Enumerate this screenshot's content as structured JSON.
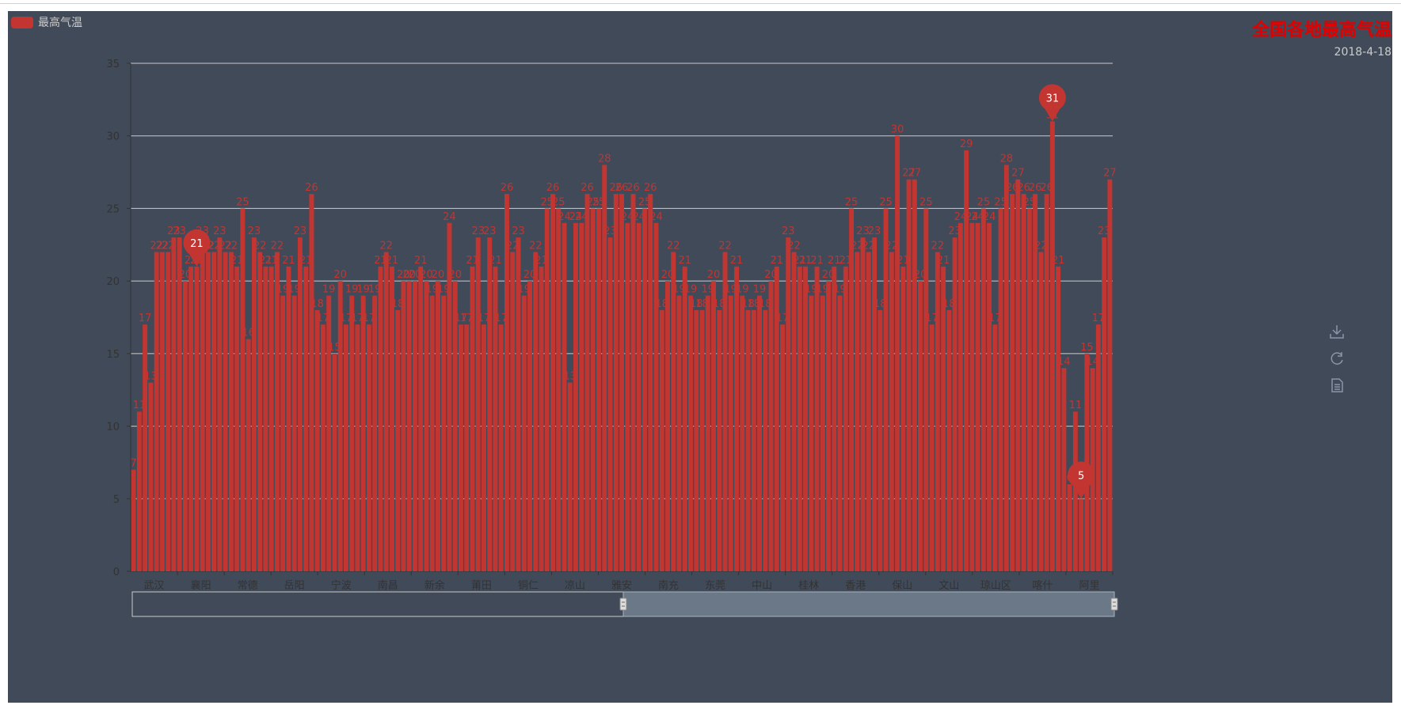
{
  "title": "全国各地最高气温",
  "subtitle": "2018-4-18",
  "legend": {
    "label": "最高气温",
    "color": "#c23531"
  },
  "colors": {
    "panel_bg": "#404a59",
    "bar": "#c23531",
    "axis_text": "#333333",
    "grid": "#cccccc",
    "slider": "#6b7888"
  },
  "toolbox": [
    "download-icon",
    "refresh-icon",
    "data-view-icon"
  ],
  "chart_data": {
    "type": "bar",
    "series_name": "最高气温",
    "x_tick_labels": [
      "武汉",
      "襄阳",
      "常德",
      "岳阳",
      "宁波",
      "南昌",
      "新余",
      "莆田",
      "铜仁",
      "凉山",
      "雅安",
      "南充",
      "东莞",
      "中山",
      "桂林",
      "香港",
      "保山",
      "文山",
      "琼山区",
      "喀什",
      "阿里"
    ],
    "values": [
      7,
      11,
      17,
      13,
      22,
      22,
      22,
      23,
      23,
      20,
      21,
      21,
      23,
      22,
      22,
      23,
      22,
      22,
      21,
      25,
      16,
      23,
      22,
      21,
      21,
      22,
      19,
      21,
      19,
      23,
      21,
      26,
      18,
      17,
      19,
      15,
      20,
      17,
      19,
      17,
      19,
      17,
      19,
      21,
      22,
      21,
      18,
      20,
      20,
      20,
      21,
      20,
      19,
      20,
      19,
      24,
      20,
      17,
      17,
      21,
      23,
      17,
      23,
      21,
      17,
      26,
      22,
      23,
      19,
      20,
      22,
      21,
      25,
      26,
      25,
      24,
      13,
      24,
      24,
      26,
      25,
      25,
      28,
      23,
      26,
      26,
      24,
      26,
      24,
      25,
      26,
      24,
      18,
      20,
      22,
      19,
      21,
      19,
      18,
      18,
      19,
      20,
      18,
      22,
      19,
      21,
      19,
      18,
      18,
      19,
      18,
      20,
      21,
      17,
      23,
      22,
      21,
      21,
      19,
      21,
      19,
      20,
      21,
      19,
      21,
      25,
      22,
      23,
      22,
      23,
      18,
      25,
      22,
      30,
      21,
      27,
      27,
      20,
      25,
      17,
      22,
      21,
      18,
      23,
      24,
      29,
      24,
      24,
      25,
      24,
      17,
      25,
      28,
      26,
      27,
      26,
      25,
      26,
      22,
      26,
      31,
      21,
      14,
      6,
      11,
      5,
      15,
      14,
      17,
      23,
      27
    ],
    "ylim": [
      0,
      35
    ],
    "y_ticks": [
      0,
      5,
      10,
      15,
      20,
      25,
      30,
      35
    ],
    "max_point": {
      "label": "31",
      "value": 31
    },
    "min_point": {
      "label": "5",
      "value": 5
    },
    "extra_point": {
      "label": "21",
      "value": 21
    },
    "grid": true,
    "legend_position": "top-left",
    "data_zoom_range_percent": [
      50,
      100
    ]
  }
}
